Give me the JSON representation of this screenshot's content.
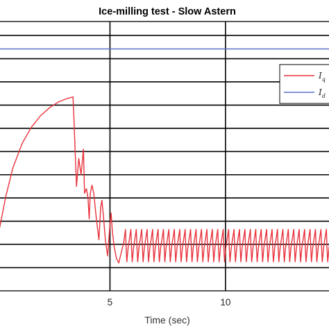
{
  "chart_data": {
    "type": "line",
    "title": "Ice-milling test - Slow Astern",
    "xlabel": "Time (sec)",
    "ylabel": "",
    "xlim": [
      0.0,
      14.6
    ],
    "ylim": [
      -1.0,
      10.6
    ],
    "x_ticks": [
      5,
      10
    ],
    "y_gridlines": [
      0,
      1,
      2,
      3,
      4,
      5,
      6,
      7,
      8,
      9,
      10
    ],
    "grid": true,
    "legend_position": "top-right",
    "series": [
      {
        "name": "I",
        "subscript": "q",
        "color": "#e8323c",
        "x": [
          0.0,
          0.2,
          0.5,
          0.8,
          1.2,
          1.6,
          2.0,
          2.4,
          2.8,
          3.2,
          3.4,
          3.45,
          3.55,
          3.65,
          3.75,
          3.85,
          3.9,
          3.98,
          4.05,
          4.1,
          4.15,
          4.22,
          4.3,
          4.4,
          4.52,
          4.6,
          4.65,
          4.72,
          4.8,
          4.9,
          5.0,
          5.05,
          5.1,
          5.18,
          5.28,
          5.38,
          5.5,
          5.6
        ],
        "values": [
          0.3,
          1.6,
          3.1,
          4.3,
          5.35,
          6.05,
          6.55,
          6.9,
          7.15,
          7.3,
          7.35,
          6.2,
          3.5,
          4.7,
          4.0,
          5.1,
          3.2,
          3.4,
          3.0,
          2.1,
          3.2,
          3.55,
          3.2,
          2.2,
          1.2,
          2.6,
          2.9,
          2.2,
          1.2,
          0.5,
          1.85,
          2.35,
          1.6,
          0.9,
          0.4,
          0.2,
          0.7,
          1.1
        ],
        "oscillation": {
          "start": 5.6,
          "end": 14.6,
          "period": 0.235,
          "min": 0.25,
          "max": 1.65
        }
      },
      {
        "name": "I",
        "subscript": "d",
        "color": "#5a6ec8",
        "x": [
          0.0,
          14.6
        ],
        "values": [
          9.42,
          9.42
        ]
      }
    ]
  }
}
